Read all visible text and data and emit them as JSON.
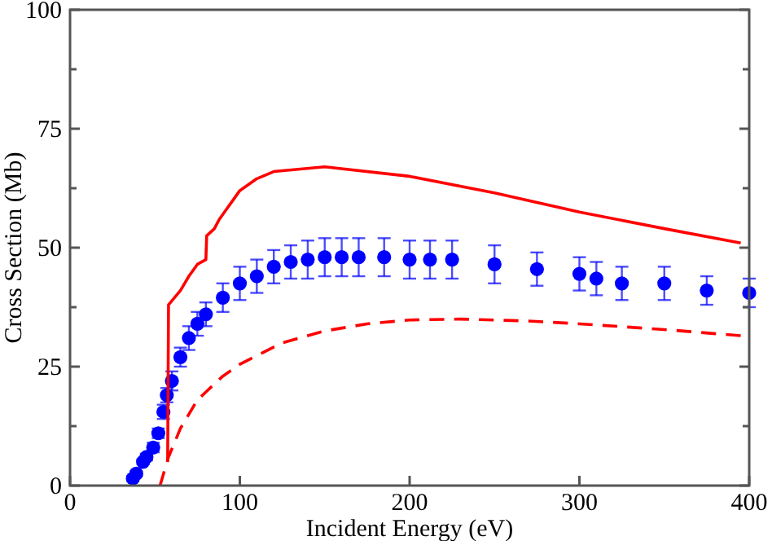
{
  "chart_data": {
    "type": "scatter",
    "xlabel": "Incident Energy (eV)",
    "ylabel": "Cross Section (Mb)",
    "xlim": [
      0,
      400
    ],
    "ylim": [
      0,
      100
    ],
    "xticks": [
      0,
      100,
      200,
      300,
      400
    ],
    "yticks": [
      0,
      {
        "value": 12.5,
        "label": null
      },
      25,
      {
        "value": 37.5,
        "label": null
      },
      50,
      {
        "value": 62.5,
        "label": null
      },
      75,
      {
        "value": 87.5,
        "label": null
      },
      100
    ],
    "grid": false,
    "series": [
      {
        "color": "#0000ff",
        "marker": "circle",
        "x": [
          37,
          39,
          43,
          45,
          49,
          52,
          55,
          57,
          60,
          65,
          70,
          75,
          80,
          90,
          100,
          110,
          120,
          130,
          140,
          150,
          160,
          170,
          185,
          200,
          212,
          225,
          250,
          275,
          300,
          310,
          325,
          350,
          375,
          400
        ],
        "values": [
          1.5,
          2.5,
          5,
          6,
          8,
          11,
          15.5,
          19,
          22,
          27,
          31,
          34,
          36,
          39.5,
          42.5,
          44,
          46,
          47,
          47.5,
          48,
          48,
          48,
          48,
          47.5,
          47.5,
          47.5,
          46.5,
          45.5,
          44.5,
          43.5,
          42.5,
          42.5,
          41,
          40.5
        ],
        "errors": [
          0.5,
          0.5,
          0.5,
          0.7,
          1,
          1,
          1.5,
          1.5,
          2,
          2,
          2.5,
          2.5,
          2.5,
          3,
          3.5,
          3.5,
          3.5,
          3.5,
          4,
          4,
          4,
          4,
          4,
          4,
          4,
          4,
          4,
          3.5,
          3.5,
          3.5,
          3.5,
          3.5,
          3,
          3
        ]
      },
      {
        "type": "line",
        "color": "#ff0000",
        "line_style": "solid",
        "x": [
          57.5,
          58,
          65,
          70,
          75,
          80,
          80.5,
          85,
          88,
          92,
          96,
          100,
          110,
          120,
          150,
          200,
          250,
          300,
          350,
          395
        ],
        "values": [
          5,
          38,
          41,
          44,
          46.5,
          47.5,
          52.5,
          54,
          56,
          58,
          60,
          62,
          64.5,
          66,
          67,
          65,
          61.5,
          57.5,
          54,
          51
        ]
      },
      {
        "type": "line",
        "color": "#ff0000",
        "line_style": "dashed",
        "x": [
          53,
          58,
          65,
          75,
          90,
          100,
          125,
          150,
          175,
          200,
          230,
          270,
          300,
          350,
          395
        ],
        "values": [
          0,
          6,
          12,
          18,
          23,
          25.5,
          30,
          32.5,
          34,
          34.8,
          35,
          34.6,
          34,
          32.8,
          31.5
        ]
      }
    ]
  }
}
